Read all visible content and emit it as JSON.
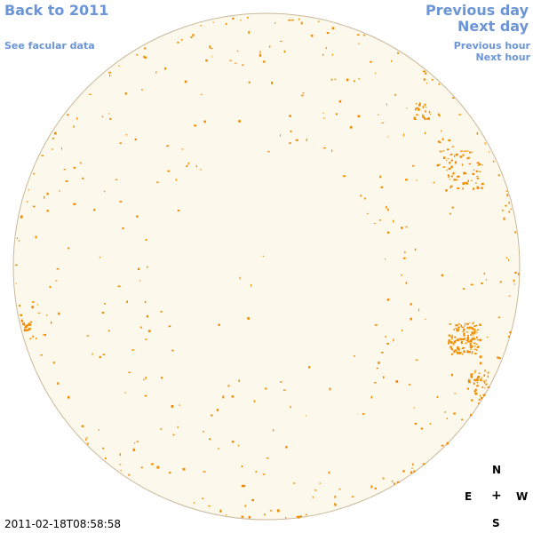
{
  "nav": {
    "back_label": "Back to 2011",
    "facular_label": "See facular data",
    "previous_day_label": "Previous day",
    "next_day_label": "Next day",
    "previous_hour_label": "Previous hour",
    "next_hour_label": "Next hour"
  },
  "timestamp": "2011-02-18T08:58:58",
  "compass": {
    "north": "N",
    "east": "E",
    "center": "+",
    "west": "W",
    "south": "S"
  },
  "colors": {
    "link": "#6b95d6",
    "disk_fill": "#fdf8ec",
    "disk_edge": "#c9b99a",
    "facula": "#f08c00"
  }
}
